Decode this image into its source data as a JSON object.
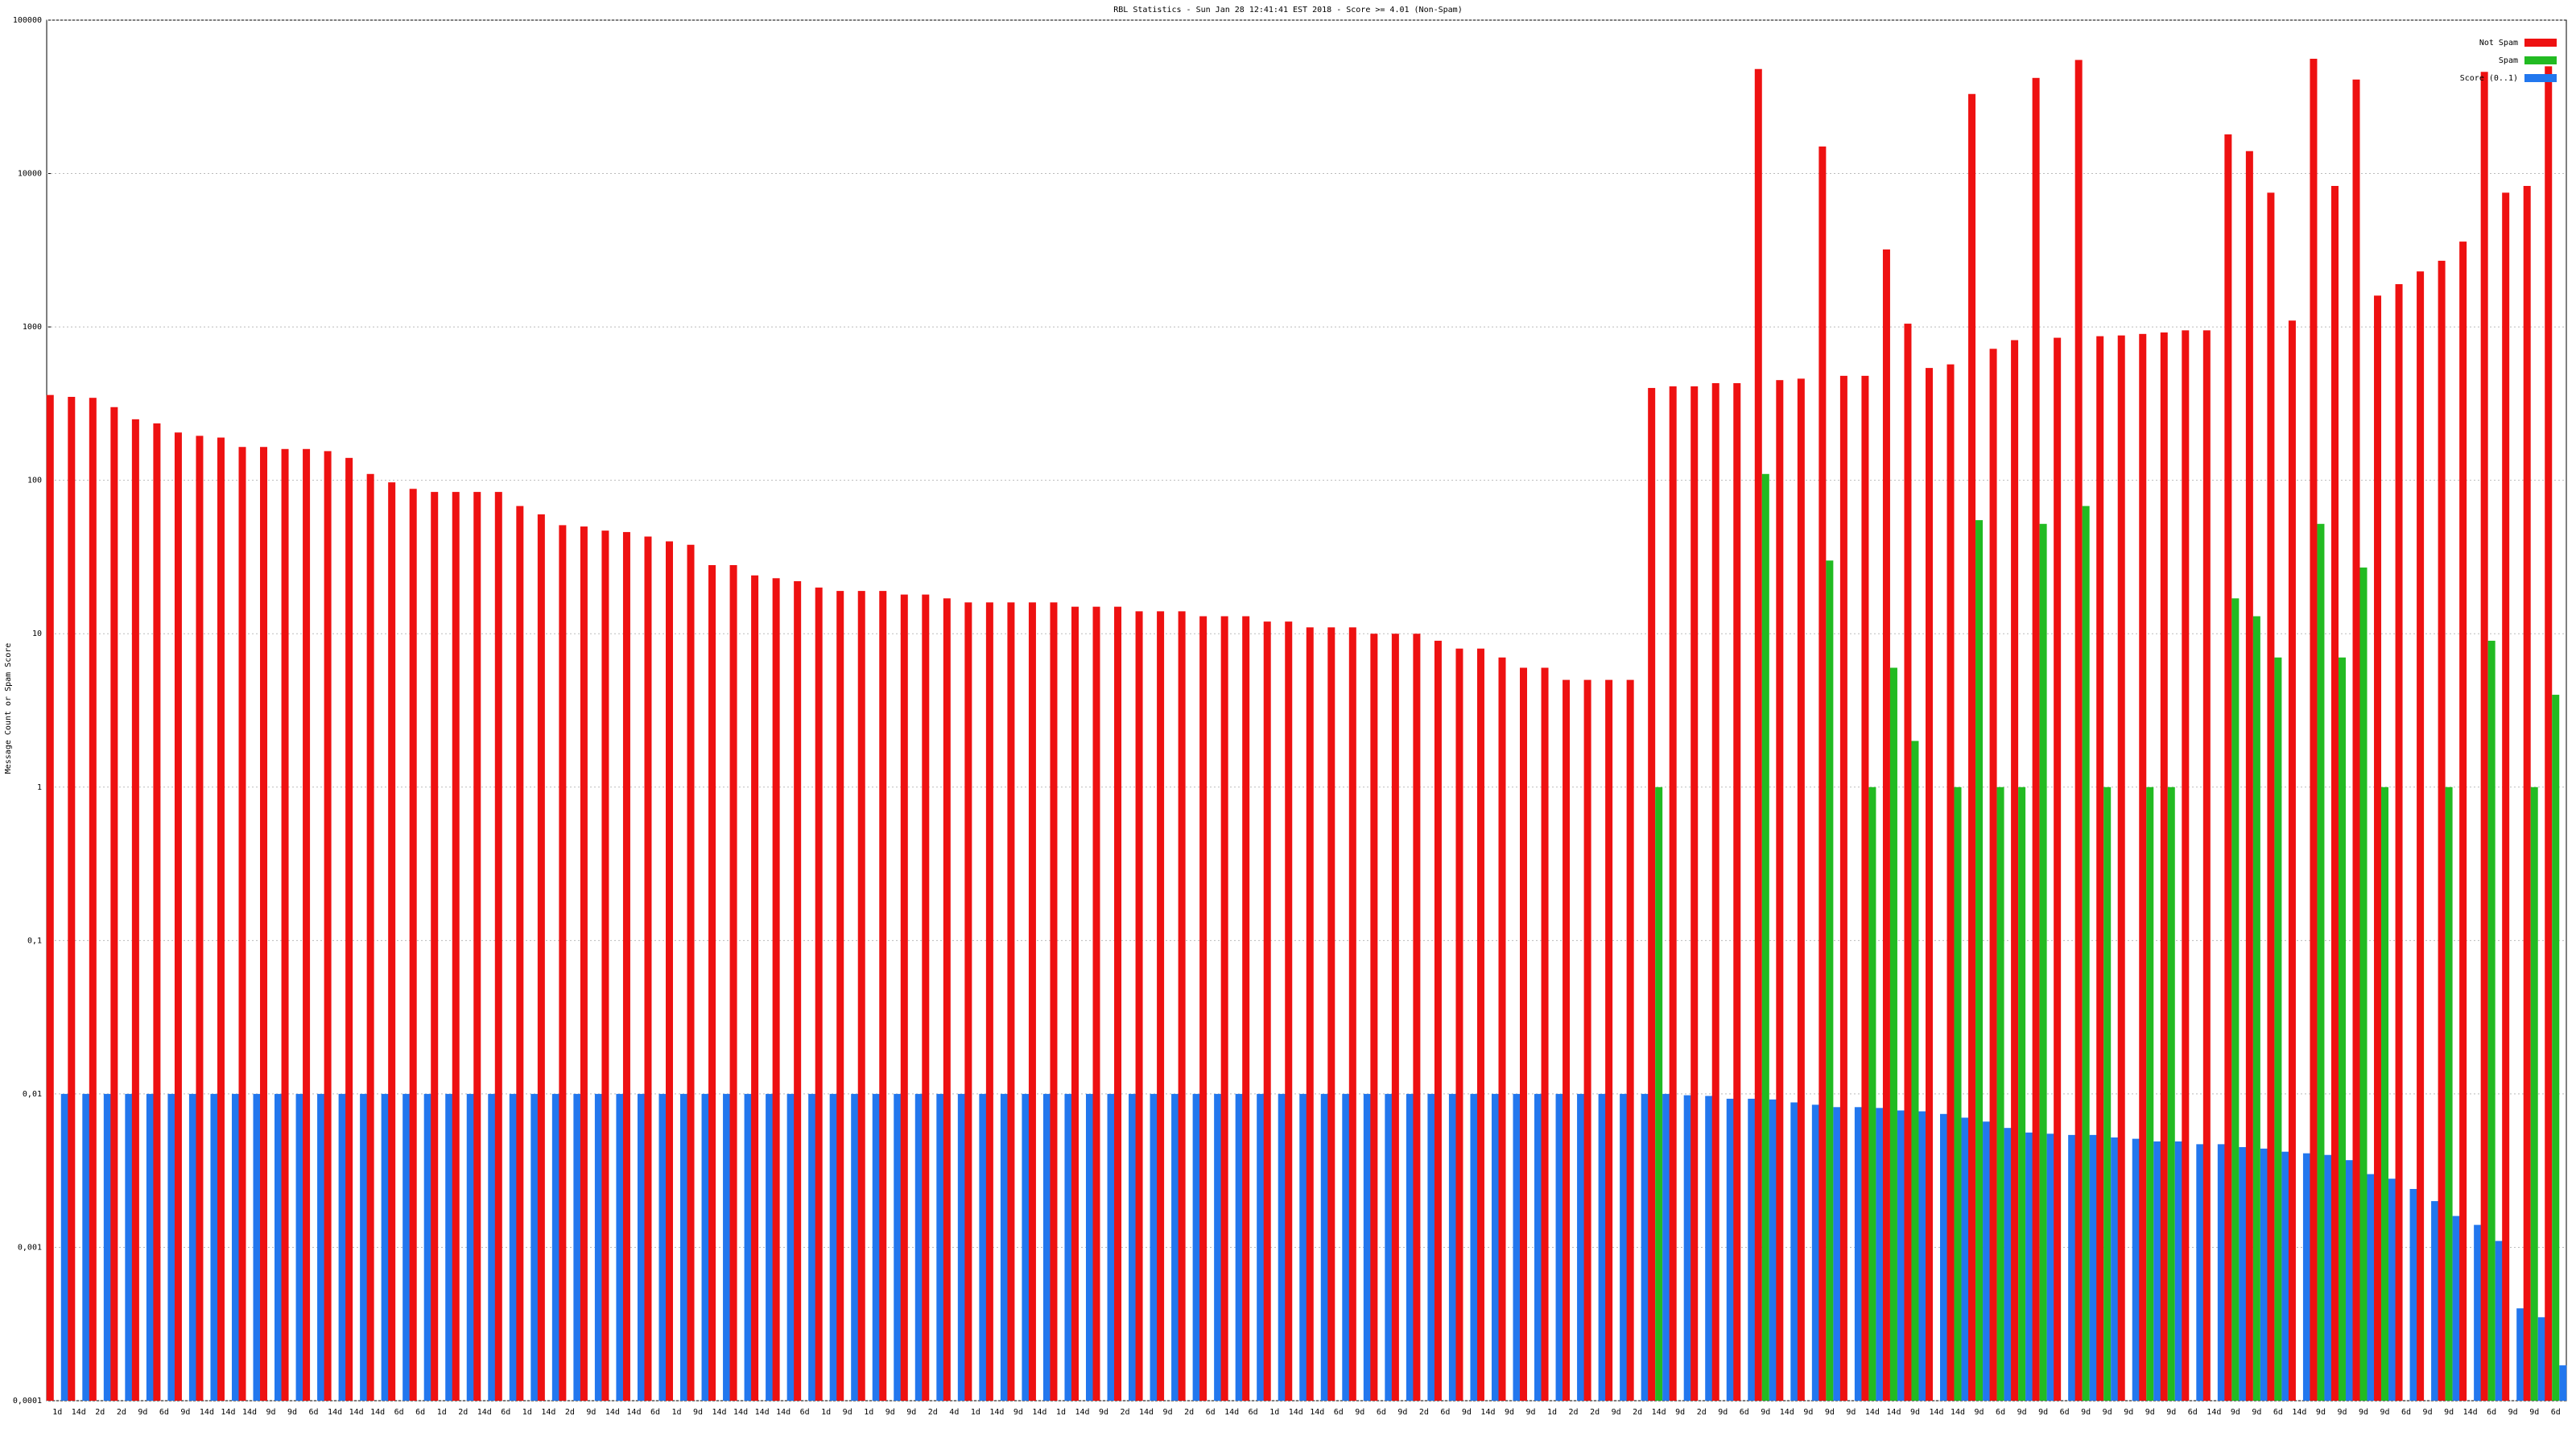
{
  "chart_data": {
    "type": "bar",
    "title": "RBL Statistics - Sun Jan 28 12:41:41 EST 2018 - Score >= 4.01 (Non-Spam)",
    "y_label": "Message Count or Spam Score",
    "log_scale": true,
    "grid": true,
    "legend_position": "top-right",
    "ylim": [
      0.0001,
      100000
    ],
    "yticks": [
      {
        "value": 0.0001,
        "label": "0,0001"
      },
      {
        "value": 0.001,
        "label": "0,001"
      },
      {
        "value": 0.01,
        "label": "0,01"
      },
      {
        "value": 0.1,
        "label": "0,1"
      },
      1,
      10,
      100,
      1000,
      10000,
      100000
    ],
    "categories": [
      "1d",
      "14d",
      "2d",
      "2d",
      "9d",
      "6d",
      "9d",
      "14d",
      "14d",
      "14d",
      "9d",
      "9d",
      "6d",
      "14d",
      "14d",
      "14d",
      "6d",
      "6d",
      "1d",
      "2d",
      "14d",
      "6d",
      "1d",
      "14d",
      "2d",
      "9d",
      "14d",
      "14d",
      "6d",
      "1d",
      "9d",
      "14d",
      "14d",
      "14d",
      "14d",
      "6d",
      "1d",
      "9d",
      "1d",
      "9d",
      "9d",
      "2d",
      "4d",
      "1d",
      "14d",
      "9d",
      "14d",
      "1d",
      "14d",
      "9d",
      "2d",
      "14d",
      "9d",
      "2d",
      "6d",
      "14d",
      "6d",
      "1d",
      "14d",
      "14d",
      "6d",
      "9d",
      "6d",
      "9d",
      "2d",
      "6d",
      "9d",
      "14d",
      "9d",
      "9d",
      "1d",
      "2d",
      "2d",
      "9d",
      "2d",
      "14d",
      "9d",
      "2d",
      "9d",
      "6d",
      "9d",
      "14d",
      "9d",
      "9d",
      "9d",
      "14d",
      "14d",
      "9d",
      "14d",
      "14d",
      "9d",
      "6d",
      "9d",
      "9d",
      "6d",
      "9d",
      "9d",
      "9d",
      "9d",
      "9d",
      "6d",
      "14d",
      "9d",
      "9d",
      "6d",
      "14d",
      "9d",
      "9d",
      "9d",
      "9d",
      "6d",
      "9d",
      "9d",
      "14d",
      "6d",
      "9d",
      "9d",
      "6d"
    ],
    "series": [
      {
        "name": "Not Spam",
        "color": "#ee1111",
        "values": [
          360,
          350,
          345,
          300,
          250,
          235,
          205,
          195,
          190,
          165,
          165,
          160,
          160,
          155,
          140,
          110,
          97,
          88,
          84,
          84,
          84,
          84,
          68,
          60,
          51,
          50,
          47,
          46,
          43,
          40,
          38,
          28,
          28,
          24,
          23,
          22,
          20,
          19,
          19,
          19,
          18,
          18,
          17,
          16,
          16,
          16,
          16,
          16,
          15,
          15,
          15,
          14,
          14,
          14,
          13,
          13,
          13,
          12,
          12,
          11,
          11,
          11,
          10,
          10,
          10,
          9,
          8,
          8,
          7,
          6,
          6,
          5,
          5,
          5,
          5,
          400,
          410,
          410,
          430,
          430,
          48000,
          450,
          460,
          15000,
          480,
          480,
          3200,
          1050,
          540,
          570,
          33000,
          720,
          820,
          42000,
          850,
          55000,
          870,
          880,
          900,
          920,
          950,
          950,
          18000,
          14000,
          7500,
          1100,
          56000,
          8300,
          41000,
          1600,
          1900,
          2300,
          2700,
          3600,
          46000,
          7500,
          8300,
          50000
        ]
      },
      {
        "name": "Spam",
        "color": "#22bb22",
        "values": [
          null,
          null,
          null,
          null,
          null,
          null,
          null,
          null,
          null,
          null,
          null,
          null,
          null,
          null,
          null,
          null,
          null,
          null,
          null,
          null,
          null,
          null,
          null,
          null,
          null,
          null,
          null,
          null,
          null,
          null,
          null,
          null,
          null,
          null,
          null,
          null,
          null,
          null,
          null,
          null,
          null,
          null,
          null,
          null,
          null,
          null,
          null,
          null,
          null,
          null,
          null,
          null,
          null,
          null,
          null,
          null,
          null,
          null,
          null,
          null,
          null,
          null,
          null,
          null,
          null,
          null,
          null,
          null,
          null,
          null,
          null,
          null,
          null,
          null,
          null,
          1,
          null,
          null,
          null,
          null,
          110,
          null,
          null,
          30,
          null,
          1,
          6,
          2,
          null,
          1,
          55,
          1,
          1,
          52,
          null,
          68,
          1,
          null,
          1,
          1,
          null,
          null,
          17,
          13,
          7,
          null,
          52,
          7,
          27,
          1,
          null,
          null,
          1,
          null,
          9,
          null,
          1,
          4
        ]
      },
      {
        "name": "Score (0..1)",
        "color": "#2277ee",
        "values": [
          0.01,
          0.01,
          0.01,
          0.01,
          0.01,
          0.01,
          0.01,
          0.01,
          0.01,
          0.01,
          0.01,
          0.01,
          0.01,
          0.01,
          0.01,
          0.01,
          0.01,
          0.01,
          0.01,
          0.01,
          0.01,
          0.01,
          0.01,
          0.01,
          0.01,
          0.01,
          0.01,
          0.01,
          0.01,
          0.01,
          0.01,
          0.01,
          0.01,
          0.01,
          0.01,
          0.01,
          0.01,
          0.01,
          0.01,
          0.01,
          0.01,
          0.01,
          0.01,
          0.01,
          0.01,
          0.01,
          0.01,
          0.01,
          0.01,
          0.01,
          0.01,
          0.01,
          0.01,
          0.01,
          0.01,
          0.01,
          0.01,
          0.01,
          0.01,
          0.01,
          0.01,
          0.01,
          0.01,
          0.01,
          0.01,
          0.01,
          0.01,
          0.01,
          0.01,
          0.01,
          0.01,
          0.01,
          0.01,
          0.01,
          0.01,
          0.01,
          0.0098,
          0.0097,
          0.0093,
          0.0093,
          0.0092,
          0.0088,
          0.0085,
          0.0082,
          0.0082,
          0.0081,
          0.0078,
          0.0077,
          0.0074,
          0.007,
          0.0066,
          0.006,
          0.0056,
          0.0055,
          0.0054,
          0.0054,
          0.0052,
          0.0051,
          0.0049,
          0.0049,
          0.0047,
          0.0047,
          0.0045,
          0.0044,
          0.0042,
          0.0041,
          0.004,
          0.0037,
          0.003,
          0.0028,
          0.0024,
          0.002,
          0.0016,
          0.0014,
          0.0011,
          0.0004,
          0.00035,
          0.00017
        ]
      }
    ]
  }
}
